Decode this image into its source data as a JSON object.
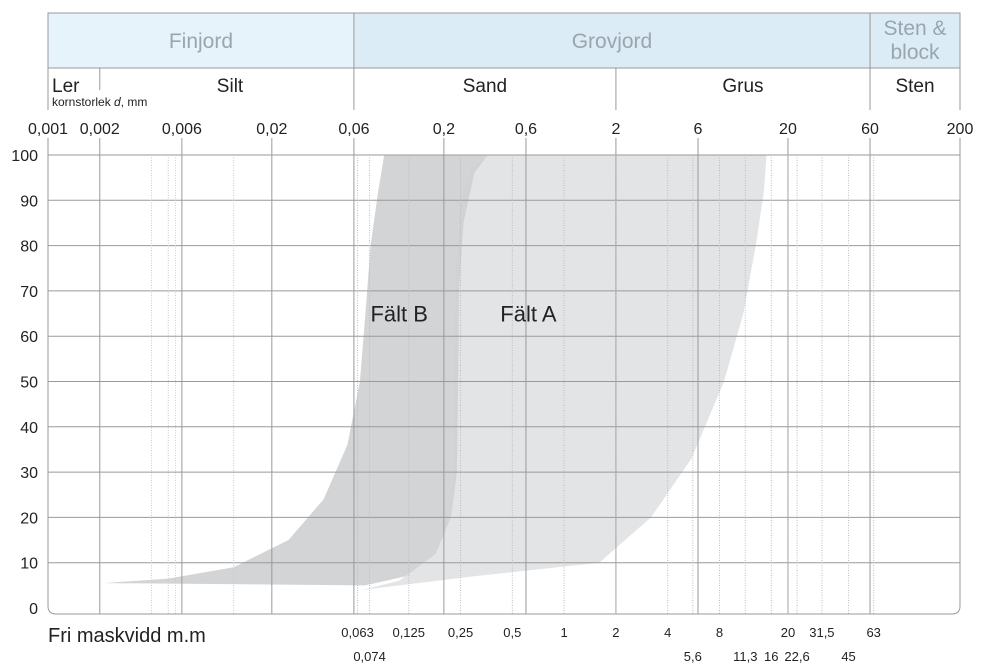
{
  "header": {
    "groups": [
      {
        "label": "Finjord"
      },
      {
        "label": "Grovjord"
      },
      {
        "label": "Sten &",
        "label2": "block"
      }
    ],
    "fractions": [
      {
        "label": "Ler"
      },
      {
        "label": "Silt"
      },
      {
        "label": "Sand"
      },
      {
        "label": "Grus"
      },
      {
        "label": "Sten"
      }
    ],
    "size_caption_prefix": "kornstorlek ",
    "size_caption_var": "d",
    "size_caption_suffix": ", mm"
  },
  "colors": {
    "header_fill": "#dcecf7",
    "header_fill_light": "#e7f3fb",
    "field_a": "#e3e4e6",
    "field_b": "#cfd0d2",
    "grid": "#9a9a9a"
  },
  "chart_data": {
    "type": "area",
    "x_scale": "log",
    "xlim": [
      0.001,
      200
    ],
    "ylim": [
      0,
      100
    ],
    "top_ticks": [
      {
        "value": 0.001,
        "label": "0,001"
      },
      {
        "value": 0.002,
        "label": "0,002"
      },
      {
        "value": 0.006,
        "label": "0,006"
      },
      {
        "value": 0.02,
        "label": "0,02"
      },
      {
        "value": 0.06,
        "label": "0,06"
      },
      {
        "value": 0.2,
        "label": "0,2"
      },
      {
        "value": 0.6,
        "label": "0,6"
      },
      {
        "value": 2,
        "label": "2"
      },
      {
        "value": 6,
        "label": "6"
      },
      {
        "value": 20,
        "label": "20"
      },
      {
        "value": 60,
        "label": "60"
      },
      {
        "value": 200,
        "label": "200"
      }
    ],
    "y_ticks": [
      {
        "value": 0,
        "label": "0"
      },
      {
        "value": 10,
        "label": "10"
      },
      {
        "value": 20,
        "label": "20"
      },
      {
        "value": 30,
        "label": "30"
      },
      {
        "value": 40,
        "label": "40"
      },
      {
        "value": 50,
        "label": "50"
      },
      {
        "value": 60,
        "label": "60"
      },
      {
        "value": 70,
        "label": "70"
      },
      {
        "value": 80,
        "label": "80"
      },
      {
        "value": 90,
        "label": "90"
      },
      {
        "value": 100,
        "label": "100"
      }
    ],
    "sieve_axis_title": "Fri maskvidd m.m",
    "sieves": [
      {
        "value": 0.063,
        "label": "0,063",
        "row": 1
      },
      {
        "value": 0.074,
        "label": "0,074",
        "row": 2
      },
      {
        "value": 0.125,
        "label": "0,125",
        "row": 1
      },
      {
        "value": 0.25,
        "label": "0,25",
        "row": 1
      },
      {
        "value": 0.5,
        "label": "0,5",
        "row": 1
      },
      {
        "value": 1,
        "label": "1",
        "row": 1
      },
      {
        "value": 2,
        "label": "2",
        "row": 1
      },
      {
        "value": 4,
        "label": "4",
        "row": 1
      },
      {
        "value": 5.6,
        "label": "5,6",
        "row": 2
      },
      {
        "value": 8,
        "label": "8",
        "row": 1
      },
      {
        "value": 11.3,
        "label": "11,3",
        "row": 2
      },
      {
        "value": 16,
        "label": "16",
        "row": 2
      },
      {
        "value": 20,
        "label": "20",
        "row": 1
      },
      {
        "value": 22.6,
        "label": "22,6",
        "row": 2
      },
      {
        "value": 31.5,
        "label": "31,5",
        "row": 1
      },
      {
        "value": 45,
        "label": "45",
        "row": 2
      },
      {
        "value": 63,
        "label": "63",
        "row": 1
      }
    ],
    "fields": [
      {
        "name": "Fält A",
        "color": "#e3e4e6",
        "polygon": [
          [
            0.067,
            4
          ],
          [
            0.3,
            7
          ],
          [
            1.6,
            10
          ],
          [
            3.2,
            20
          ],
          [
            5.5,
            33
          ],
          [
            8.5,
            50
          ],
          [
            11,
            65
          ],
          [
            13,
            80
          ],
          [
            14.5,
            92
          ],
          [
            15,
            100
          ],
          [
            0.36,
            100
          ],
          [
            0.29,
            97
          ],
          [
            0.25,
            90
          ],
          [
            0.235,
            75
          ],
          [
            0.23,
            50
          ],
          [
            0.229,
            30
          ],
          [
            0.22,
            20
          ],
          [
            0.18,
            12
          ],
          [
            0.11,
            6
          ],
          [
            0.067,
            4
          ]
        ]
      },
      {
        "name": "Fält B",
        "color": "#cfd0d2",
        "polygon": [
          [
            0.0021,
            5.5
          ],
          [
            0.005,
            6.5
          ],
          [
            0.012,
            9
          ],
          [
            0.025,
            15
          ],
          [
            0.04,
            24
          ],
          [
            0.055,
            36
          ],
          [
            0.065,
            50
          ],
          [
            0.07,
            65
          ],
          [
            0.075,
            80
          ],
          [
            0.083,
            92
          ],
          [
            0.09,
            100
          ],
          [
            0.36,
            100
          ],
          [
            0.3,
            96
          ],
          [
            0.26,
            85
          ],
          [
            0.245,
            70
          ],
          [
            0.242,
            50
          ],
          [
            0.238,
            30
          ],
          [
            0.22,
            20
          ],
          [
            0.18,
            12
          ],
          [
            0.12,
            7
          ],
          [
            0.07,
            5
          ],
          [
            0.0021,
            5.5
          ]
        ]
      }
    ]
  }
}
